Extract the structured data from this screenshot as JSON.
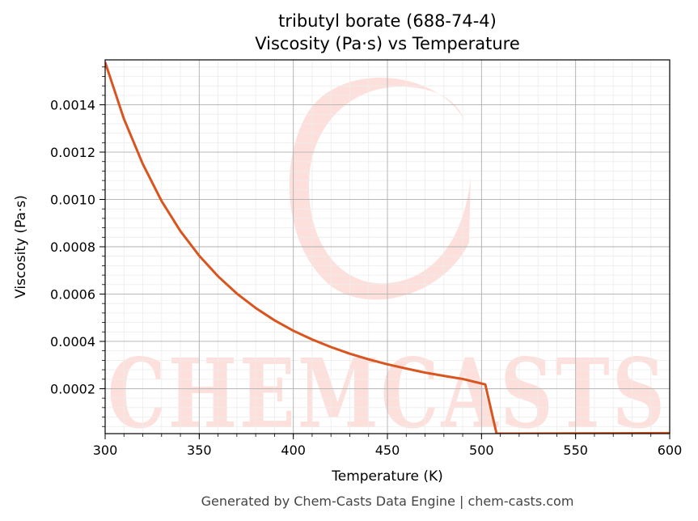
{
  "chart_data": {
    "type": "line",
    "title": "tributyl borate (688-74-4)",
    "subtitle": "Viscosity (Pa·s) vs Temperature",
    "xlabel": "Temperature (K)",
    "ylabel": "Viscosity (Pa·s)",
    "xlim": [
      300,
      600
    ],
    "ylim": [
      1e-05,
      0.00159
    ],
    "x_ticks": [
      300,
      350,
      400,
      450,
      500,
      550,
      600
    ],
    "x_tick_labels": [
      "300",
      "350",
      "400",
      "450",
      "500",
      "550",
      "600"
    ],
    "y_ticks": [
      0.0002,
      0.0004,
      0.0006,
      0.0008,
      0.001,
      0.0012,
      0.0014
    ],
    "y_tick_labels": [
      "0.0002",
      "0.0004",
      "0.0006",
      "0.0008",
      "0.0010",
      "0.0012",
      "0.0014"
    ],
    "grid": true,
    "line_color": "#d9541e",
    "series": [
      {
        "x": [
          300,
          310,
          320,
          330,
          340,
          350,
          360,
          370,
          380,
          390,
          400,
          410,
          420,
          430,
          440,
          450,
          460,
          470,
          480,
          490,
          502,
          508,
          520,
          550,
          600
        ],
        "values": [
          0.00158,
          0.00134,
          0.00115,
          0.000993,
          0.000866,
          0.000762,
          0.000675,
          0.000602,
          0.000541,
          0.000489,
          0.000445,
          0.000408,
          0.000376,
          0.000348,
          0.000324,
          0.000303,
          0.000285,
          0.000268,
          0.000254,
          0.000241,
          0.000218,
          1e-05,
          1e-05,
          1.1e-05,
          1.2e-05
        ]
      }
    ]
  },
  "watermark": {
    "text": "CHEMCASTS",
    "color": "#fde0dc"
  },
  "footer": "Generated by Chem-Casts Data Engine | chem-casts.com"
}
